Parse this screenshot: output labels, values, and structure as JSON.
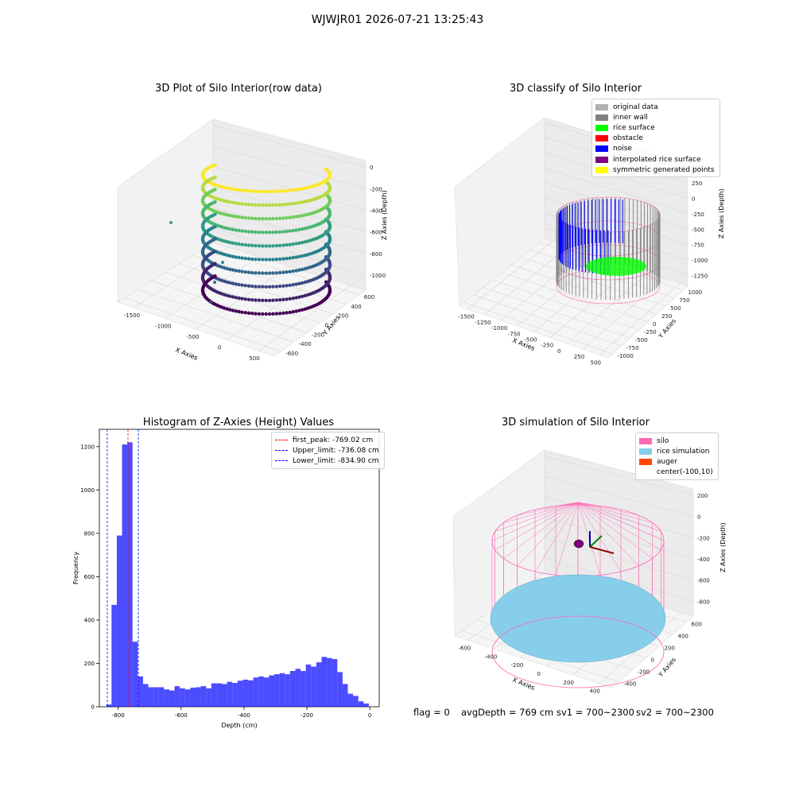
{
  "suptitle": "WJWJR01 2026-07-21 13:25:43",
  "panels": {
    "raw": {
      "title": "3D Plot of Silo Interior(row data)",
      "xlabel": "X Axies",
      "ylabel": "Y Axies",
      "zlabel": "Z Axies (Depth)",
      "xticks": [
        "-1500",
        "-1000",
        "-500",
        "0",
        "500"
      ],
      "yticks": [
        "-600",
        "-400",
        "-200",
        "0",
        "200",
        "400",
        "600"
      ],
      "zticks": [
        "0",
        "-200",
        "-400",
        "-600",
        "-800",
        "-1000"
      ]
    },
    "classify": {
      "title": "3D classify of Silo Interior",
      "xlabel": "X Axies",
      "ylabel": "Y Axies",
      "zlabel": "Z Axies (Depth)",
      "xticks": [
        "-1500",
        "-1250",
        "-1000",
        "-750",
        "-500",
        "-250",
        "0",
        "250",
        "500"
      ],
      "yticks": [
        "-1000",
        "-750",
        "-500",
        "-250",
        "0",
        "250",
        "500",
        "750",
        "1000"
      ],
      "zticks": [
        "500",
        "250",
        "0",
        "-250",
        "-500",
        "-750",
        "-1000",
        "-1250"
      ],
      "legend": [
        {
          "label": "original data",
          "color": "#b0b0b0"
        },
        {
          "label": "inner wall",
          "color": "#808080"
        },
        {
          "label": "rice surface",
          "color": "#00ff00"
        },
        {
          "label": "obstacle",
          "color": "#ff0000"
        },
        {
          "label": "noise",
          "color": "#0000ff"
        },
        {
          "label": "interpolated rice surface",
          "color": "#800080"
        },
        {
          "label": "symmetric generated points",
          "color": "#ffff00"
        }
      ]
    },
    "simulation": {
      "title": "3D simulation of Silo Interior",
      "xlabel": "X Axies",
      "ylabel": "Y Axies",
      "zlabel": "Z Axies (Depth)",
      "xticks": [
        "-600",
        "-400",
        "-200",
        "0",
        "200",
        "400"
      ],
      "yticks": [
        "-400",
        "-200",
        "0",
        "200",
        "400",
        "600"
      ],
      "zticks": [
        "200",
        "0",
        "-200",
        "-400",
        "-600",
        "-800"
      ],
      "legend": [
        {
          "label": "silo",
          "color": "#ff69b4"
        },
        {
          "label": "rice simulation",
          "color": "#87ceeb"
        },
        {
          "label": "auger",
          "color": "#ff4500"
        },
        {
          "label": "center(-100,10)",
          "color": ""
        }
      ],
      "colors": {
        "silo": "#ff69b4",
        "rice": "#87ceeb",
        "auger": "#ff4500"
      }
    }
  },
  "status": {
    "flag": "flag = 0",
    "avg": "avgDepth = 769 cm",
    "sv1": "sv1 = 700~2300",
    "sv2": "sv2 = 700~2300"
  },
  "chart_data": [
    {
      "type": "bar",
      "title": "Histogram of Z-Axies (Height) Values",
      "xlabel": "Depth (cm)",
      "ylabel": "Frequency",
      "xlim": [
        -860,
        30
      ],
      "ylim": [
        0,
        1280
      ],
      "xticks": [
        -800,
        -600,
        -400,
        -200,
        0
      ],
      "yticks": [
        0,
        200,
        400,
        600,
        800,
        1000,
        1200
      ],
      "bin_start": -838,
      "bin_width": 16.7,
      "values": [
        10,
        470,
        790,
        1210,
        1220,
        300,
        140,
        105,
        90,
        90,
        90,
        80,
        75,
        95,
        85,
        80,
        88,
        90,
        95,
        85,
        108,
        108,
        105,
        115,
        110,
        120,
        125,
        122,
        135,
        140,
        135,
        145,
        150,
        155,
        150,
        165,
        175,
        165,
        195,
        185,
        205,
        230,
        225,
        220,
        160,
        105,
        60,
        50,
        25,
        15
      ],
      "color": "#0000ff",
      "lines": [
        {
          "label": "first_peak: -769.02 cm",
          "x": -769.02,
          "color": "#ff0000"
        },
        {
          "label": "Upper_limit: -736.08 cm",
          "x": -736.08,
          "color": "#0000ff"
        },
        {
          "label": "Lower_limit: -834.90 cm",
          "x": -834.9,
          "color": "#0000ff"
        }
      ]
    }
  ]
}
